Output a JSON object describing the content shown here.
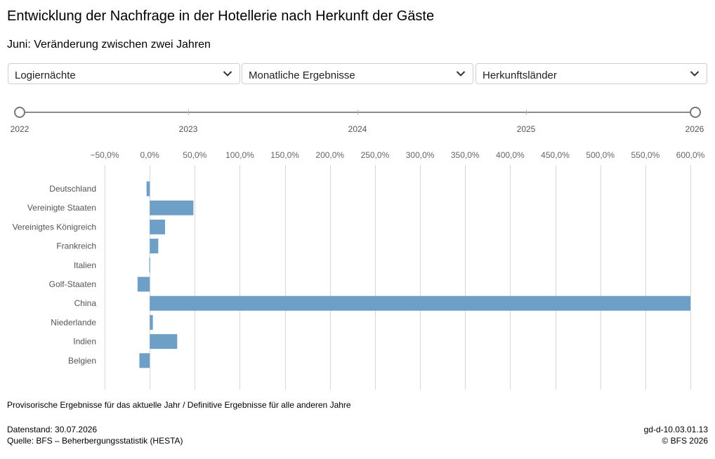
{
  "header": {
    "title": "Entwicklung der Nachfrage in der Hotellerie nach Herkunft der Gäste",
    "subtitle": "Juni: Veränderung zwischen zwei Jahren"
  },
  "filters": {
    "measure": "Logiernächte",
    "period": "Monatliche Ergebnisse",
    "breakdown": "Herkunftsländer"
  },
  "timeline": {
    "years": [
      "2022",
      "2023",
      "2024",
      "2025",
      "2026"
    ],
    "start_year": "2022",
    "end_year": "2026"
  },
  "chart_data": {
    "type": "bar",
    "orientation": "horizontal",
    "categories": [
      "Deutschland",
      "Vereinigte Staaten",
      "Vereinigtes Königreich",
      "Frankreich",
      "Italien",
      "Golf-Staaten",
      "China",
      "Niederlande",
      "Indien",
      "Belgien"
    ],
    "values": [
      -3.5,
      48.5,
      17.0,
      9.5,
      -0.5,
      -13.5,
      600.0,
      3.5,
      30.5,
      -11.5
    ],
    "xlim": [
      -50,
      600
    ],
    "ticks": [
      -50,
      0,
      50,
      100,
      150,
      200,
      250,
      300,
      350,
      400,
      450,
      500,
      550,
      600
    ],
    "tick_labels": [
      "−50,0%",
      "0,0%",
      "50,0%",
      "100,0%",
      "150,0%",
      "200,0%",
      "250,0%",
      "300,0%",
      "350,0%",
      "400,0%",
      "450,0%",
      "500,0%",
      "550,0%",
      "600,0%"
    ],
    "bar_color": "#6e9fc6",
    "grid": true
  },
  "footer": {
    "note": "Provisorische Ergebnisse für das aktuelle Jahr / Definitive Ergebnisse für alle anderen Jahre",
    "data_date": "Datenstand: 30.07.2026",
    "source": "Quelle: BFS – Beherbergungsstatistik (HESTA)",
    "id": "gd-d-10.03.01.13",
    "copyright": "© BFS 2026"
  }
}
